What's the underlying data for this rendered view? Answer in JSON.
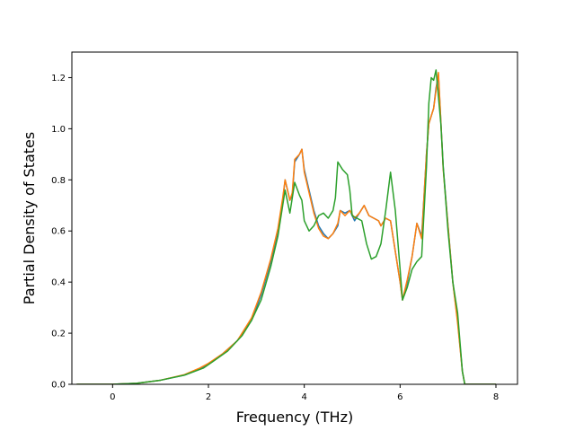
{
  "chart_data": {
    "type": "line",
    "title": "",
    "xlabel": "Frequency (THz)",
    "ylabel": "Partial Density of States",
    "xlim": [
      -0.85,
      8.45
    ],
    "ylim": [
      0.0,
      1.3
    ],
    "xticks": [
      0,
      2,
      4,
      6,
      8
    ],
    "yticks": [
      0.0,
      0.2,
      0.4,
      0.6,
      0.8,
      1.0,
      1.2
    ],
    "xtick_labels": [
      "0",
      "2",
      "4",
      "6",
      "8"
    ],
    "ytick_labels": [
      "0.0",
      "0.2",
      "0.4",
      "0.6",
      "0.8",
      "1.0",
      "1.2"
    ],
    "grid": false,
    "legend": "none",
    "series": [
      {
        "color": "#1f77b4",
        "points": [
          [
            -0.75,
            0.0
          ],
          [
            0.0,
            0.0
          ],
          [
            0.5,
            0.004
          ],
          [
            1.0,
            0.016
          ],
          [
            1.5,
            0.036
          ],
          [
            1.8,
            0.058
          ],
          [
            2.0,
            0.08
          ],
          [
            2.3,
            0.12
          ],
          [
            2.6,
            0.17
          ],
          [
            2.9,
            0.25
          ],
          [
            3.1,
            0.35
          ],
          [
            3.3,
            0.48
          ],
          [
            3.45,
            0.6
          ],
          [
            3.55,
            0.72
          ],
          [
            3.6,
            0.8
          ],
          [
            3.7,
            0.72
          ],
          [
            3.75,
            0.74
          ],
          [
            3.8,
            0.87
          ],
          [
            3.9,
            0.9
          ],
          [
            3.95,
            0.92
          ],
          [
            4.0,
            0.84
          ],
          [
            4.1,
            0.76
          ],
          [
            4.2,
            0.68
          ],
          [
            4.3,
            0.62
          ],
          [
            4.4,
            0.59
          ],
          [
            4.5,
            0.57
          ],
          [
            4.6,
            0.59
          ],
          [
            4.7,
            0.62
          ],
          [
            4.75,
            0.68
          ],
          [
            4.85,
            0.67
          ],
          [
            4.95,
            0.68
          ],
          [
            5.05,
            0.64
          ],
          [
            5.15,
            0.67
          ],
          [
            5.25,
            0.7
          ],
          [
            5.35,
            0.66
          ],
          [
            5.45,
            0.65
          ],
          [
            5.55,
            0.64
          ],
          [
            5.6,
            0.62
          ],
          [
            5.7,
            0.65
          ],
          [
            5.8,
            0.64
          ],
          [
            5.9,
            0.52
          ],
          [
            6.0,
            0.4
          ],
          [
            6.05,
            0.33
          ],
          [
            6.15,
            0.4
          ],
          [
            6.25,
            0.5
          ],
          [
            6.35,
            0.63
          ],
          [
            6.45,
            0.58
          ],
          [
            6.55,
            0.9
          ],
          [
            6.6,
            1.02
          ],
          [
            6.7,
            1.08
          ],
          [
            6.75,
            1.16
          ],
          [
            6.8,
            1.21
          ],
          [
            6.9,
            0.85
          ],
          [
            7.0,
            0.62
          ],
          [
            7.1,
            0.4
          ],
          [
            7.2,
            0.25
          ],
          [
            7.3,
            0.05
          ],
          [
            7.35,
            0.0
          ],
          [
            8.0,
            0.0
          ]
        ]
      },
      {
        "color": "#ff7f0e",
        "points": [
          [
            -0.75,
            0.0
          ],
          [
            0.0,
            0.0
          ],
          [
            0.5,
            0.004
          ],
          [
            1.0,
            0.016
          ],
          [
            1.5,
            0.038
          ],
          [
            1.8,
            0.062
          ],
          [
            2.0,
            0.082
          ],
          [
            2.3,
            0.12
          ],
          [
            2.6,
            0.17
          ],
          [
            2.9,
            0.26
          ],
          [
            3.1,
            0.36
          ],
          [
            3.3,
            0.49
          ],
          [
            3.45,
            0.61
          ],
          [
            3.55,
            0.73
          ],
          [
            3.6,
            0.8
          ],
          [
            3.7,
            0.72
          ],
          [
            3.75,
            0.75
          ],
          [
            3.8,
            0.88
          ],
          [
            3.9,
            0.9
          ],
          [
            3.95,
            0.92
          ],
          [
            4.0,
            0.83
          ],
          [
            4.1,
            0.75
          ],
          [
            4.2,
            0.67
          ],
          [
            4.3,
            0.61
          ],
          [
            4.4,
            0.58
          ],
          [
            4.5,
            0.57
          ],
          [
            4.6,
            0.59
          ],
          [
            4.7,
            0.63
          ],
          [
            4.75,
            0.68
          ],
          [
            4.85,
            0.66
          ],
          [
            4.95,
            0.68
          ],
          [
            5.05,
            0.65
          ],
          [
            5.15,
            0.67
          ],
          [
            5.25,
            0.7
          ],
          [
            5.35,
            0.66
          ],
          [
            5.45,
            0.65
          ],
          [
            5.55,
            0.64
          ],
          [
            5.6,
            0.62
          ],
          [
            5.7,
            0.65
          ],
          [
            5.8,
            0.64
          ],
          [
            5.9,
            0.52
          ],
          [
            6.0,
            0.4
          ],
          [
            6.05,
            0.33
          ],
          [
            6.15,
            0.41
          ],
          [
            6.25,
            0.5
          ],
          [
            6.35,
            0.63
          ],
          [
            6.45,
            0.57
          ],
          [
            6.55,
            0.9
          ],
          [
            6.6,
            1.02
          ],
          [
            6.7,
            1.08
          ],
          [
            6.75,
            1.15
          ],
          [
            6.8,
            1.22
          ],
          [
            6.9,
            0.84
          ],
          [
            7.0,
            0.62
          ],
          [
            7.1,
            0.4
          ],
          [
            7.2,
            0.24
          ],
          [
            7.3,
            0.05
          ],
          [
            7.35,
            0.0
          ],
          [
            8.0,
            0.0
          ]
        ]
      },
      {
        "color": "#2ca02c",
        "points": [
          [
            -0.75,
            0.0
          ],
          [
            0.0,
            0.0
          ],
          [
            0.5,
            0.004
          ],
          [
            1.0,
            0.016
          ],
          [
            1.5,
            0.036
          ],
          [
            1.9,
            0.064
          ],
          [
            2.1,
            0.09
          ],
          [
            2.4,
            0.13
          ],
          [
            2.7,
            0.19
          ],
          [
            2.9,
            0.25
          ],
          [
            3.1,
            0.33
          ],
          [
            3.3,
            0.46
          ],
          [
            3.45,
            0.58
          ],
          [
            3.55,
            0.7
          ],
          [
            3.6,
            0.76
          ],
          [
            3.7,
            0.67
          ],
          [
            3.75,
            0.73
          ],
          [
            3.8,
            0.79
          ],
          [
            3.9,
            0.74
          ],
          [
            3.95,
            0.72
          ],
          [
            4.0,
            0.64
          ],
          [
            4.1,
            0.6
          ],
          [
            4.2,
            0.62
          ],
          [
            4.3,
            0.66
          ],
          [
            4.4,
            0.67
          ],
          [
            4.5,
            0.65
          ],
          [
            4.6,
            0.68
          ],
          [
            4.65,
            0.73
          ],
          [
            4.7,
            0.87
          ],
          [
            4.8,
            0.84
          ],
          [
            4.9,
            0.82
          ],
          [
            4.95,
            0.76
          ],
          [
            5.0,
            0.66
          ],
          [
            5.1,
            0.65
          ],
          [
            5.2,
            0.64
          ],
          [
            5.3,
            0.55
          ],
          [
            5.4,
            0.49
          ],
          [
            5.5,
            0.5
          ],
          [
            5.6,
            0.55
          ],
          [
            5.7,
            0.68
          ],
          [
            5.8,
            0.83
          ],
          [
            5.9,
            0.68
          ],
          [
            6.0,
            0.45
          ],
          [
            6.05,
            0.33
          ],
          [
            6.15,
            0.38
          ],
          [
            6.25,
            0.45
          ],
          [
            6.35,
            0.48
          ],
          [
            6.45,
            0.5
          ],
          [
            6.55,
            0.85
          ],
          [
            6.6,
            1.1
          ],
          [
            6.65,
            1.2
          ],
          [
            6.7,
            1.19
          ],
          [
            6.75,
            1.23
          ],
          [
            6.85,
            1.02
          ],
          [
            6.9,
            0.85
          ],
          [
            7.0,
            0.6
          ],
          [
            7.1,
            0.4
          ],
          [
            7.2,
            0.28
          ],
          [
            7.3,
            0.05
          ],
          [
            7.35,
            0.0
          ],
          [
            8.0,
            0.0
          ]
        ]
      }
    ]
  }
}
